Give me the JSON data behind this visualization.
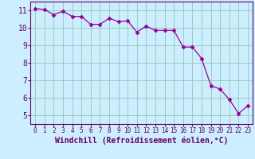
{
  "x": [
    0,
    1,
    2,
    3,
    4,
    5,
    6,
    7,
    8,
    9,
    10,
    11,
    12,
    13,
    14,
    15,
    16,
    17,
    18,
    19,
    20,
    21,
    22,
    23
  ],
  "y": [
    11.1,
    11.05,
    10.75,
    10.95,
    10.65,
    10.65,
    10.2,
    10.2,
    10.55,
    10.35,
    10.4,
    9.75,
    10.1,
    9.85,
    9.85,
    9.85,
    8.9,
    8.9,
    8.25,
    6.7,
    6.5,
    5.9,
    5.1,
    5.55
  ],
  "line_color": "#990099",
  "marker": "D",
  "marker_size": 2.5,
  "bg_color": "#cceeff",
  "grid_color": "#99ccbb",
  "xlabel": "Windchill (Refroidissement éolien,°C)",
  "xlim": [
    -0.5,
    23.5
  ],
  "ylim": [
    4.5,
    11.5
  ],
  "xtick_labels": [
    "0",
    "1",
    "2",
    "3",
    "4",
    "5",
    "6",
    "7",
    "8",
    "9",
    "10",
    "11",
    "12",
    "13",
    "14",
    "15",
    "16",
    "17",
    "18",
    "19",
    "20",
    "21",
    "22",
    "23"
  ],
  "yticks": [
    5,
    6,
    7,
    8,
    9,
    10,
    11
  ],
  "xlabel_color": "#660066",
  "tick_color": "#660066",
  "spine_color": "#660066",
  "x_fontsize": 5.5,
  "y_fontsize": 7,
  "xlabel_fontsize": 7
}
